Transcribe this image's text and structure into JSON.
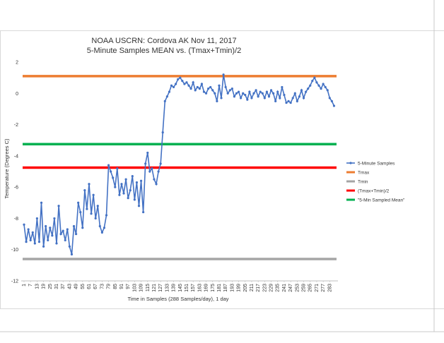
{
  "chart_data": {
    "type": "line",
    "title": "NOAA USCRN:  Cordova AK Nov 11, 2017",
    "subtitle": "5-Minute Samples MEAN vs. (Tmax+Tmin)/2",
    "xlabel": "Time in Samples (288 Samples/day), 1 day",
    "ylabel": "Temperature (Degrees C)",
    "ylim": [
      -12,
      2
    ],
    "yticks": [
      "2",
      "0",
      "-2",
      "-4",
      "-6",
      "-8",
      "-10",
      "-12"
    ],
    "xticks": [
      "1",
      "7",
      "13",
      "19",
      "25",
      "31",
      "37",
      "43",
      "49",
      "55",
      "61",
      "67",
      "73",
      "79",
      "85",
      "91",
      "97",
      "103",
      "109",
      "115",
      "121",
      "127",
      "133",
      "139",
      "145",
      "151",
      "157",
      "163",
      "169",
      "175",
      "181",
      "187",
      "193",
      "199",
      "205",
      "211",
      "217",
      "223",
      "229",
      "235",
      "241",
      "247",
      "253",
      "259",
      "265",
      "271",
      "277",
      "283"
    ],
    "grid": false,
    "legend_position": "right",
    "series": [
      {
        "name": "5-Minute Samples",
        "color": "#4472C4",
        "x": [
          1,
          3,
          5,
          7,
          9,
          11,
          13,
          15,
          17,
          19,
          21,
          23,
          25,
          27,
          29,
          31,
          33,
          35,
          37,
          39,
          41,
          43,
          45,
          47,
          49,
          51,
          53,
          55,
          57,
          59,
          61,
          63,
          65,
          67,
          69,
          71,
          73,
          75,
          77,
          79,
          81,
          83,
          85,
          87,
          89,
          91,
          93,
          95,
          97,
          99,
          101,
          103,
          105,
          107,
          109,
          111,
          113,
          115,
          117,
          119,
          121,
          123,
          125,
          127,
          129,
          131,
          133,
          135,
          137,
          139,
          141,
          143,
          145,
          147,
          149,
          151,
          153,
          155,
          157,
          159,
          161,
          163,
          165,
          167,
          169,
          171,
          173,
          175,
          177,
          179,
          181,
          183,
          185,
          187,
          189,
          191,
          193,
          195,
          197,
          199,
          201,
          203,
          205,
          207,
          209,
          211,
          213,
          215,
          217,
          219,
          221,
          223,
          225,
          227,
          229,
          231,
          233,
          235,
          237,
          239,
          241,
          243,
          245,
          247,
          249,
          251,
          253,
          255,
          257,
          259,
          261,
          263,
          265,
          267,
          269,
          271,
          273,
          275,
          277,
          279,
          281,
          283,
          285,
          287
        ],
        "y": [
          -8.4,
          -9.5,
          -8.7,
          -9.4,
          -8.9,
          -9.6,
          -8.0,
          -9.5,
          -7.0,
          -9.8,
          -8.5,
          -9.4,
          -8.6,
          -9.1,
          -8.0,
          -9.6,
          -7.2,
          -9.0,
          -8.8,
          -9.4,
          -8.7,
          -9.8,
          -10.3,
          -8.5,
          -9.0,
          -7.0,
          -7.6,
          -8.6,
          -6.2,
          -7.4,
          -5.8,
          -7.7,
          -6.5,
          -8.0,
          -7.2,
          -8.5,
          -8.9,
          -8.6,
          -7.8,
          -4.6,
          -5.0,
          -5.4,
          -6.0,
          -4.8,
          -6.5,
          -5.8,
          -6.4,
          -5.5,
          -6.7,
          -6.2,
          -5.3,
          -6.8,
          -5.7,
          -7.2,
          -5.6,
          -7.6,
          -4.5,
          -3.8,
          -5.0,
          -4.8,
          -5.5,
          -5.8,
          -5.0,
          -4.5,
          -2.5,
          -0.5,
          -0.2,
          0.1,
          0.5,
          0.4,
          0.6,
          0.9,
          1.0,
          0.8,
          0.6,
          0.7,
          0.5,
          0.3,
          0.7,
          0.2,
          0.4,
          0.3,
          0.6,
          0.1,
          0.0,
          0.3,
          0.4,
          0.2,
          0.0,
          -0.5,
          0.5,
          -0.3,
          1.2,
          0.4,
          0.0,
          0.2,
          0.3,
          -0.2,
          0.0,
          0.1,
          -0.3,
          0.0,
          -0.1,
          -0.4,
          0.1,
          -0.3,
          0.0,
          0.2,
          -0.2,
          0.1,
          0.0,
          -0.3,
          0.1,
          -0.2,
          0.2,
          0.0,
          -0.5,
          0.1,
          -0.3,
          0.4,
          -0.1,
          -0.6,
          -0.5,
          -0.6,
          -0.3,
          0.0,
          -0.5,
          -0.2,
          0.2,
          -0.3,
          0.1,
          0.3,
          0.5,
          0.8,
          1.0,
          0.7,
          0.5,
          0.3,
          0.6,
          0.4,
          0.2,
          -0.3,
          -0.5,
          -0.8
        ]
      },
      {
        "name": "Tmax",
        "color": "#ED7D31",
        "value": 1.1
      },
      {
        "name": "Tmin",
        "color": "#A5A5A5",
        "value": -10.6
      },
      {
        "name": "(Tmax+Tmin)/2",
        "color": "#FF0000",
        "value": -4.75
      },
      {
        "name": "\"5-Min Sampled Mean\"",
        "color": "#00B050",
        "value": -3.25
      }
    ]
  }
}
